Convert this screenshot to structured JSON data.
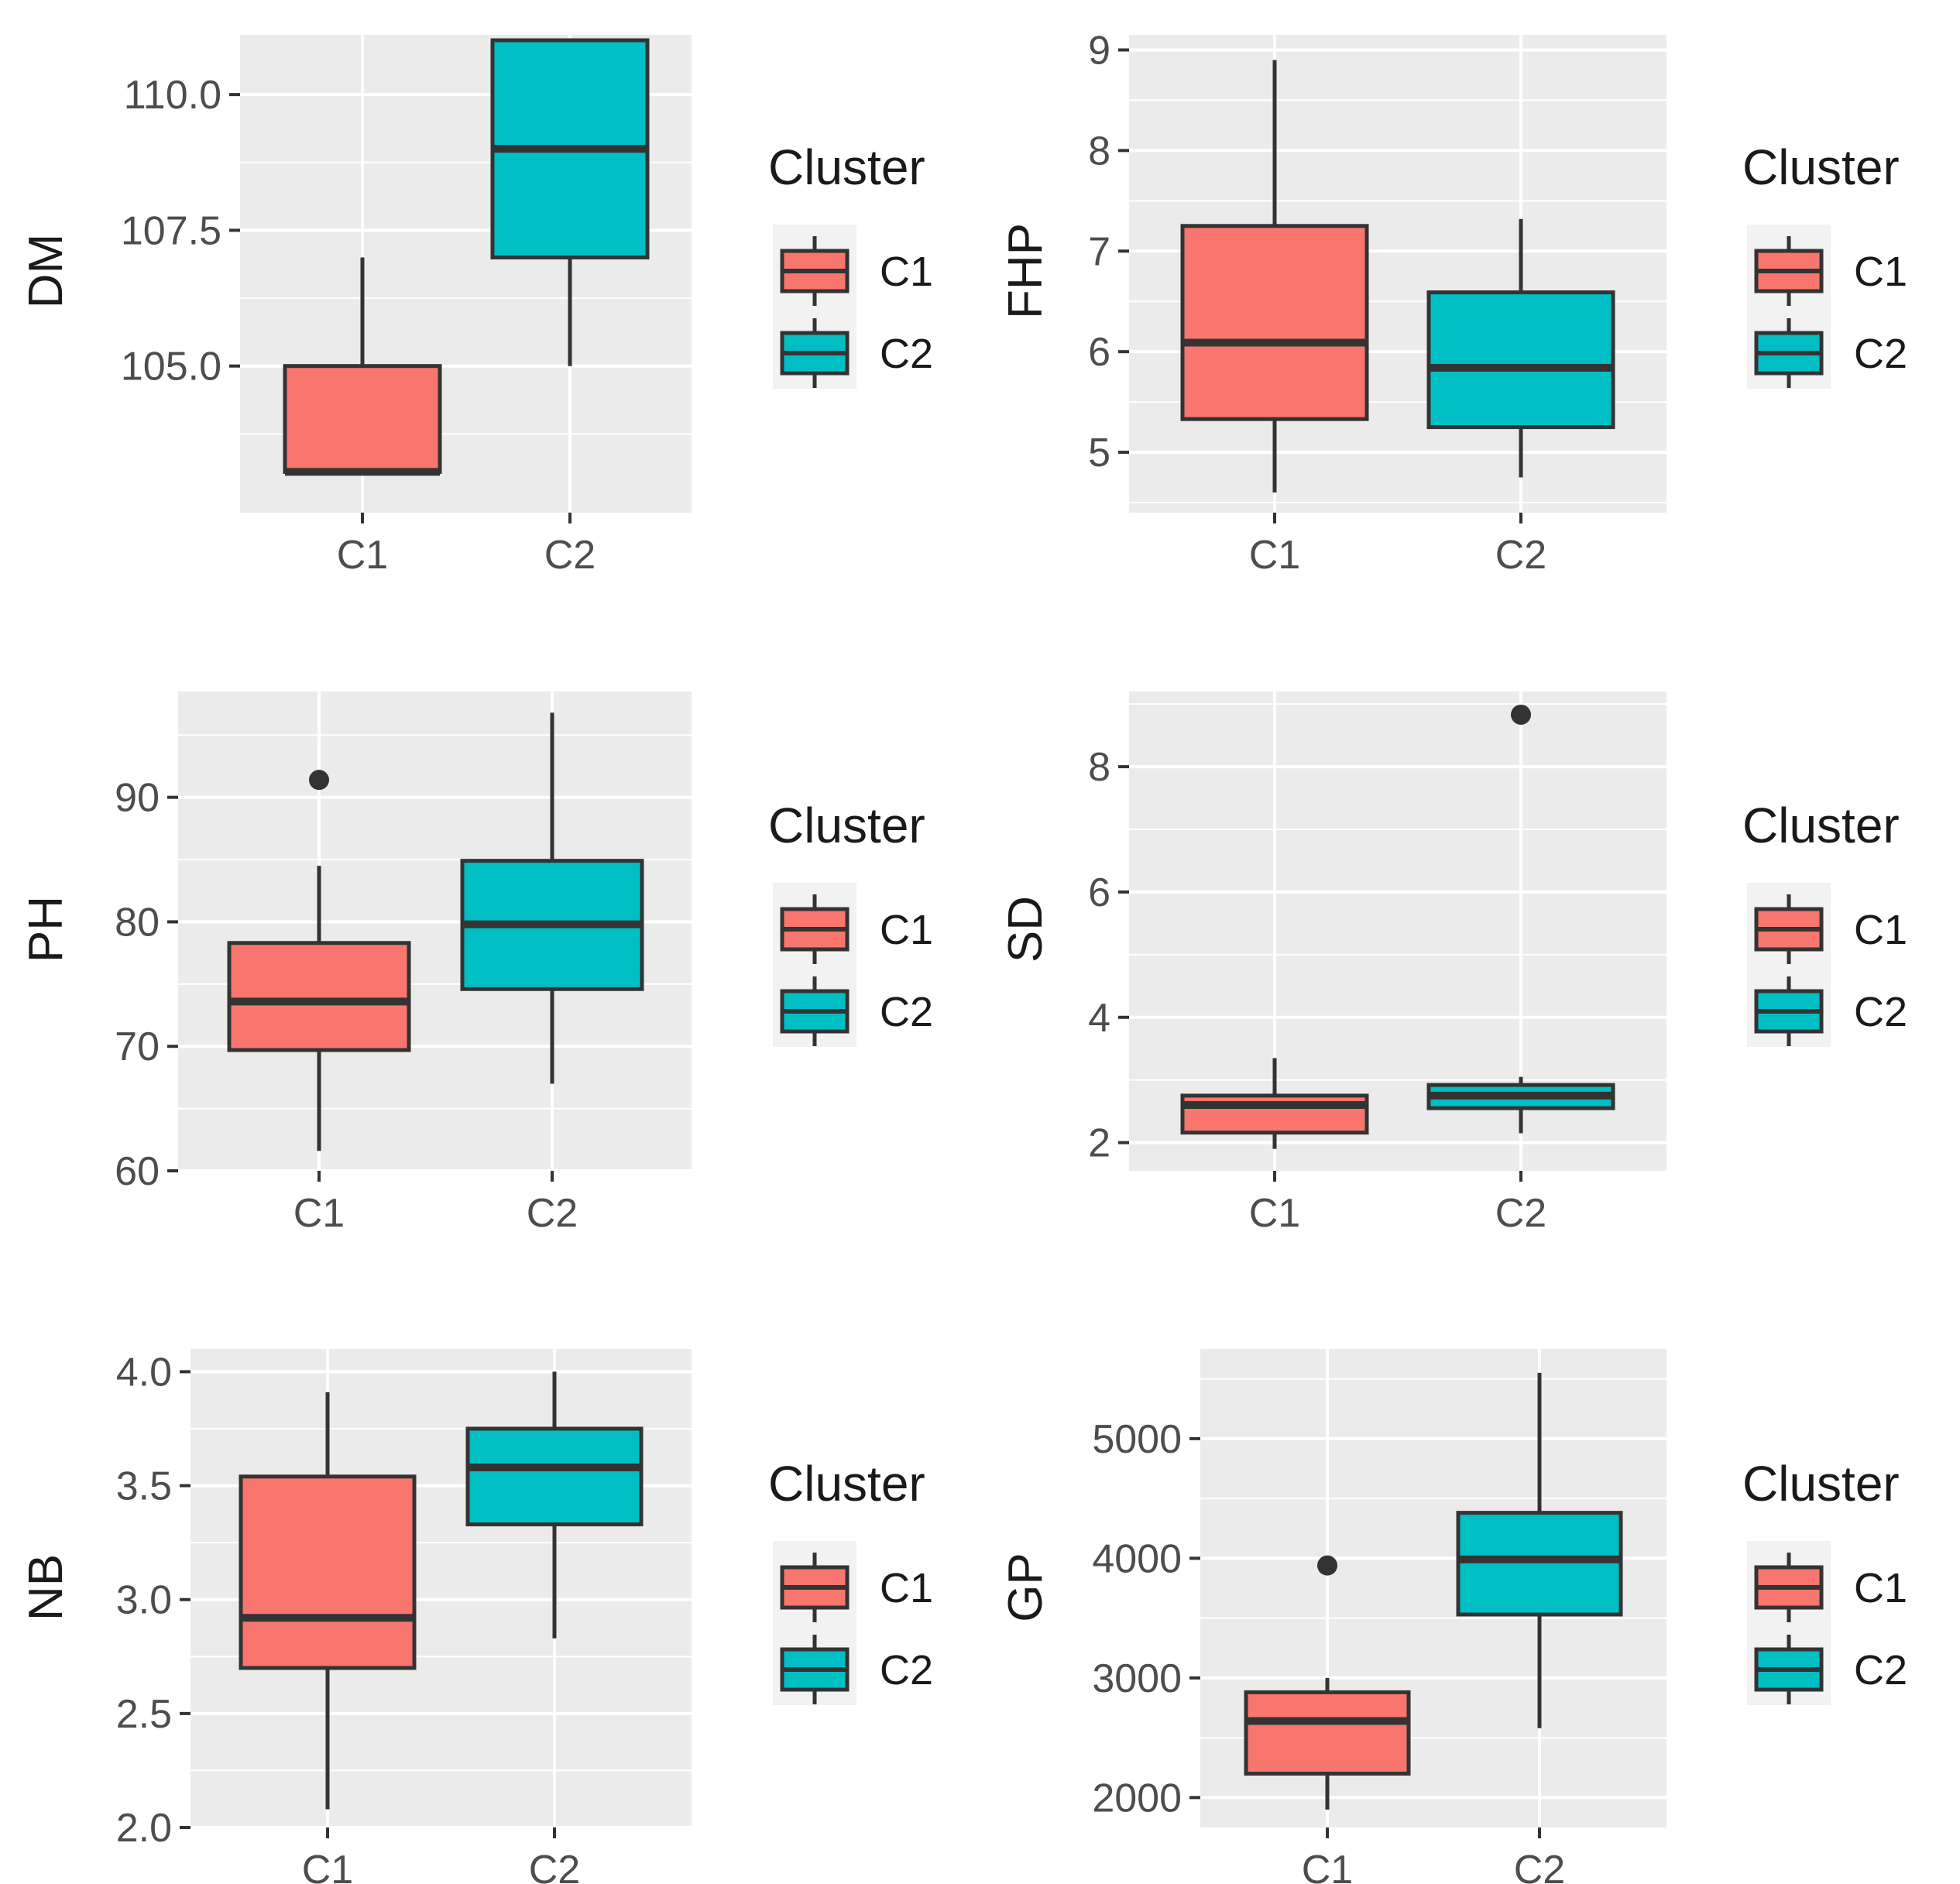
{
  "legend": {
    "title": "Cluster",
    "labels": [
      "C1",
      "C2"
    ]
  },
  "colors": {
    "C1": "#f8766d",
    "C2": "#00bfc4",
    "panel": "#ebebeb",
    "grid": "#ffffff",
    "line": "#333333",
    "tick": "#4d4d4d"
  },
  "chart_data": [
    {
      "type": "box",
      "ylabel": "DM",
      "ylim": [
        102.3,
        111.1
      ],
      "yticks": [
        105.0,
        107.5,
        110.0
      ],
      "ytick_labels": [
        "105.0",
        "107.5",
        "110.0"
      ],
      "categories": [
        "C1",
        "C2"
      ],
      "boxes": [
        {
          "name": "C1",
          "q1": 103.05,
          "median": 103.05,
          "q3": 105.0,
          "whisker_low": 103.05,
          "whisker_high": 107.0,
          "outliers": []
        },
        {
          "name": "C2",
          "q1": 107.0,
          "median": 109.0,
          "q3": 111.0,
          "whisker_low": 105.0,
          "whisker_high": 111.0,
          "outliers": []
        }
      ]
    },
    {
      "type": "box",
      "ylabel": "FHP",
      "ylim": [
        4.4,
        9.15
      ],
      "yticks": [
        5,
        6,
        7,
        8,
        9
      ],
      "ytick_labels": [
        "5",
        "6",
        "7",
        "8",
        "9"
      ],
      "categories": [
        "C1",
        "C2"
      ],
      "boxes": [
        {
          "name": "C1",
          "q1": 5.33,
          "median": 6.09,
          "q3": 7.25,
          "whisker_low": 4.6,
          "whisker_high": 8.9,
          "outliers": []
        },
        {
          "name": "C2",
          "q1": 5.25,
          "median": 5.84,
          "q3": 6.59,
          "whisker_low": 4.75,
          "whisker_high": 7.32,
          "outliers": []
        }
      ]
    },
    {
      "type": "box",
      "ylabel": "PH",
      "ylim": [
        60,
        98.5
      ],
      "yticks": [
        60,
        70,
        80,
        90
      ],
      "ytick_labels": [
        "60",
        "70",
        "80",
        "90"
      ],
      "categories": [
        "C1",
        "C2"
      ],
      "boxes": [
        {
          "name": "C1",
          "q1": 69.7,
          "median": 73.6,
          "q3": 78.3,
          "whisker_low": 61.6,
          "whisker_high": 84.5,
          "outliers": [
            91.4
          ]
        },
        {
          "name": "C2",
          "q1": 74.6,
          "median": 79.8,
          "q3": 84.9,
          "whisker_low": 67.0,
          "whisker_high": 96.8,
          "outliers": []
        }
      ]
    },
    {
      "type": "box",
      "ylabel": "SD",
      "ylim": [
        1.55,
        9.2
      ],
      "yticks": [
        2,
        4,
        6,
        8
      ],
      "ytick_labels": [
        "2",
        "4",
        "6",
        "8"
      ],
      "categories": [
        "C1",
        "C2"
      ],
      "boxes": [
        {
          "name": "C1",
          "q1": 2.16,
          "median": 2.6,
          "q3": 2.75,
          "whisker_low": 1.9,
          "whisker_high": 3.35,
          "outliers": []
        },
        {
          "name": "C2",
          "q1": 2.55,
          "median": 2.75,
          "q3": 2.92,
          "whisker_low": 2.15,
          "whisker_high": 3.05,
          "outliers": [
            8.83
          ]
        }
      ]
    },
    {
      "type": "box",
      "ylabel": "NB",
      "ylim": [
        2.0,
        4.1
      ],
      "yticks": [
        2.0,
        2.5,
        3.0,
        3.5,
        4.0
      ],
      "ytick_labels": [
        "2.0",
        "2.5",
        "3.0",
        "3.5",
        "4.0"
      ],
      "categories": [
        "C1",
        "C2"
      ],
      "boxes": [
        {
          "name": "C1",
          "q1": 2.7,
          "median": 2.92,
          "q3": 3.54,
          "whisker_low": 2.08,
          "whisker_high": 3.91,
          "outliers": []
        },
        {
          "name": "C2",
          "q1": 3.33,
          "median": 3.58,
          "q3": 3.75,
          "whisker_low": 2.83,
          "whisker_high": 4.0,
          "outliers": []
        }
      ]
    },
    {
      "type": "box",
      "ylabel": "GP",
      "ylim": [
        1750,
        5750
      ],
      "yticks": [
        2000,
        3000,
        4000,
        5000
      ],
      "ytick_labels": [
        "2000",
        "3000",
        "4000",
        "5000"
      ],
      "categories": [
        "C1",
        "C2"
      ],
      "boxes": [
        {
          "name": "C1",
          "q1": 2200,
          "median": 2640,
          "q3": 2880,
          "whisker_low": 1900,
          "whisker_high": 3000,
          "outliers": [
            3940
          ]
        },
        {
          "name": "C2",
          "q1": 3530,
          "median": 3990,
          "q3": 4380,
          "whisker_low": 2580,
          "whisker_high": 5550,
          "outliers": []
        }
      ]
    }
  ]
}
